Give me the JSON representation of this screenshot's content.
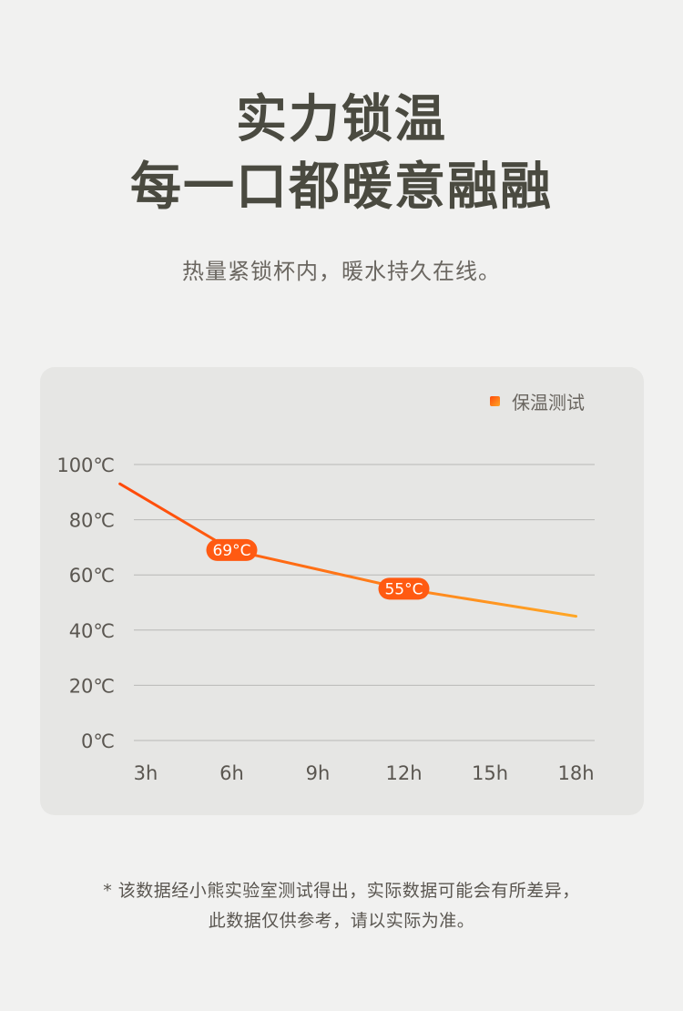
{
  "header": {
    "title_line1": "实力锁温",
    "title_line2": "每一口都暖意融融",
    "subtitle": "热量紧锁杯内，暖水持久在线。"
  },
  "colors": {
    "title": "#4a4a40",
    "card_bg": "#e6e6e4",
    "line_start": "#ff4a0a",
    "line_end": "#ffa726",
    "label_bg": "#ff5a12",
    "gridline": "#b8b8b6"
  },
  "chart_data": {
    "type": "line",
    "categories": [
      "3h",
      "6h",
      "9h",
      "12h",
      "15h",
      "18h"
    ],
    "ylim": [
      0,
      100
    ],
    "y_ticks": [
      "100℃",
      "80℃",
      "60℃",
      "40℃",
      "20℃",
      "0℃"
    ],
    "y_tick_values": [
      100,
      80,
      60,
      40,
      20,
      0
    ],
    "grid": true,
    "legend_position": "top-right",
    "series": [
      {
        "name": "保温测试",
        "x": [
          2.1,
          6,
          9,
          12,
          15,
          18
        ],
        "values": [
          93,
          69,
          62,
          55,
          50,
          45
        ]
      }
    ],
    "annotations": [
      {
        "x": 6,
        "y": 69,
        "text": "69°C"
      },
      {
        "x": 12,
        "y": 55,
        "text": "55°C"
      }
    ]
  },
  "footnote": {
    "line1": "* 该数据经小熊实验室测试得出，实际数据可能会有所差异，",
    "line2": "此数据仅供参考，请以实际为准。"
  }
}
